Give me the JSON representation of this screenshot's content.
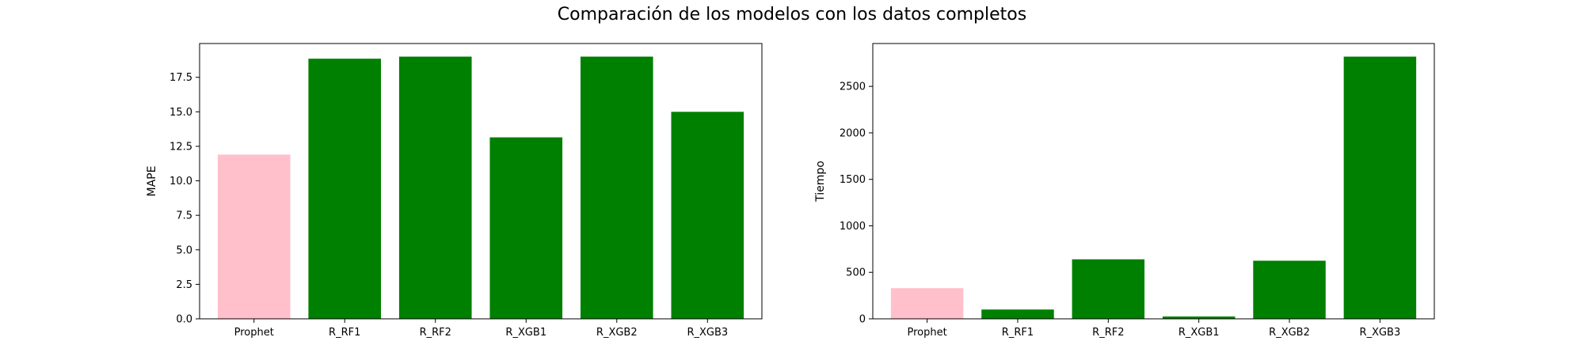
{
  "figure": {
    "title": "Comparación de los modelos con los datos completos"
  },
  "colors": {
    "prophet": "#ffc0cb",
    "others": "#008000"
  },
  "chart_data": [
    {
      "type": "bar",
      "categories": [
        "Prophet",
        "R_RF1",
        "R_RF2",
        "R_XGB1",
        "R_XGB2",
        "R_XGB3"
      ],
      "values": [
        11.9,
        18.85,
        19.0,
        13.15,
        19.0,
        15.0
      ],
      "xlabel": "",
      "ylabel": "MAPE",
      "ylim": [
        0,
        19.95
      ],
      "yticks": [
        0.0,
        2.5,
        5.0,
        7.5,
        10.0,
        12.5,
        15.0,
        17.5
      ],
      "ytick_labels": [
        "0.0",
        "2.5",
        "5.0",
        "7.5",
        "10.0",
        "12.5",
        "15.0",
        "17.5"
      ],
      "bar_colors": [
        "#ffc0cb",
        "#008000",
        "#008000",
        "#008000",
        "#008000",
        "#008000"
      ],
      "grid": false
    },
    {
      "type": "bar",
      "categories": [
        "Prophet",
        "R_RF1",
        "R_RF2",
        "R_XGB1",
        "R_XGB2",
        "R_XGB3"
      ],
      "values": [
        330,
        100,
        640,
        25,
        625,
        2820
      ],
      "xlabel": "",
      "ylabel": "Tiempo",
      "ylim": [
        0,
        2961
      ],
      "yticks": [
        0,
        500,
        1000,
        1500,
        2000,
        2500
      ],
      "ytick_labels": [
        "0",
        "500",
        "1000",
        "1500",
        "2000",
        "2500"
      ],
      "bar_colors": [
        "#ffc0cb",
        "#008000",
        "#008000",
        "#008000",
        "#008000",
        "#008000"
      ],
      "grid": false
    }
  ]
}
